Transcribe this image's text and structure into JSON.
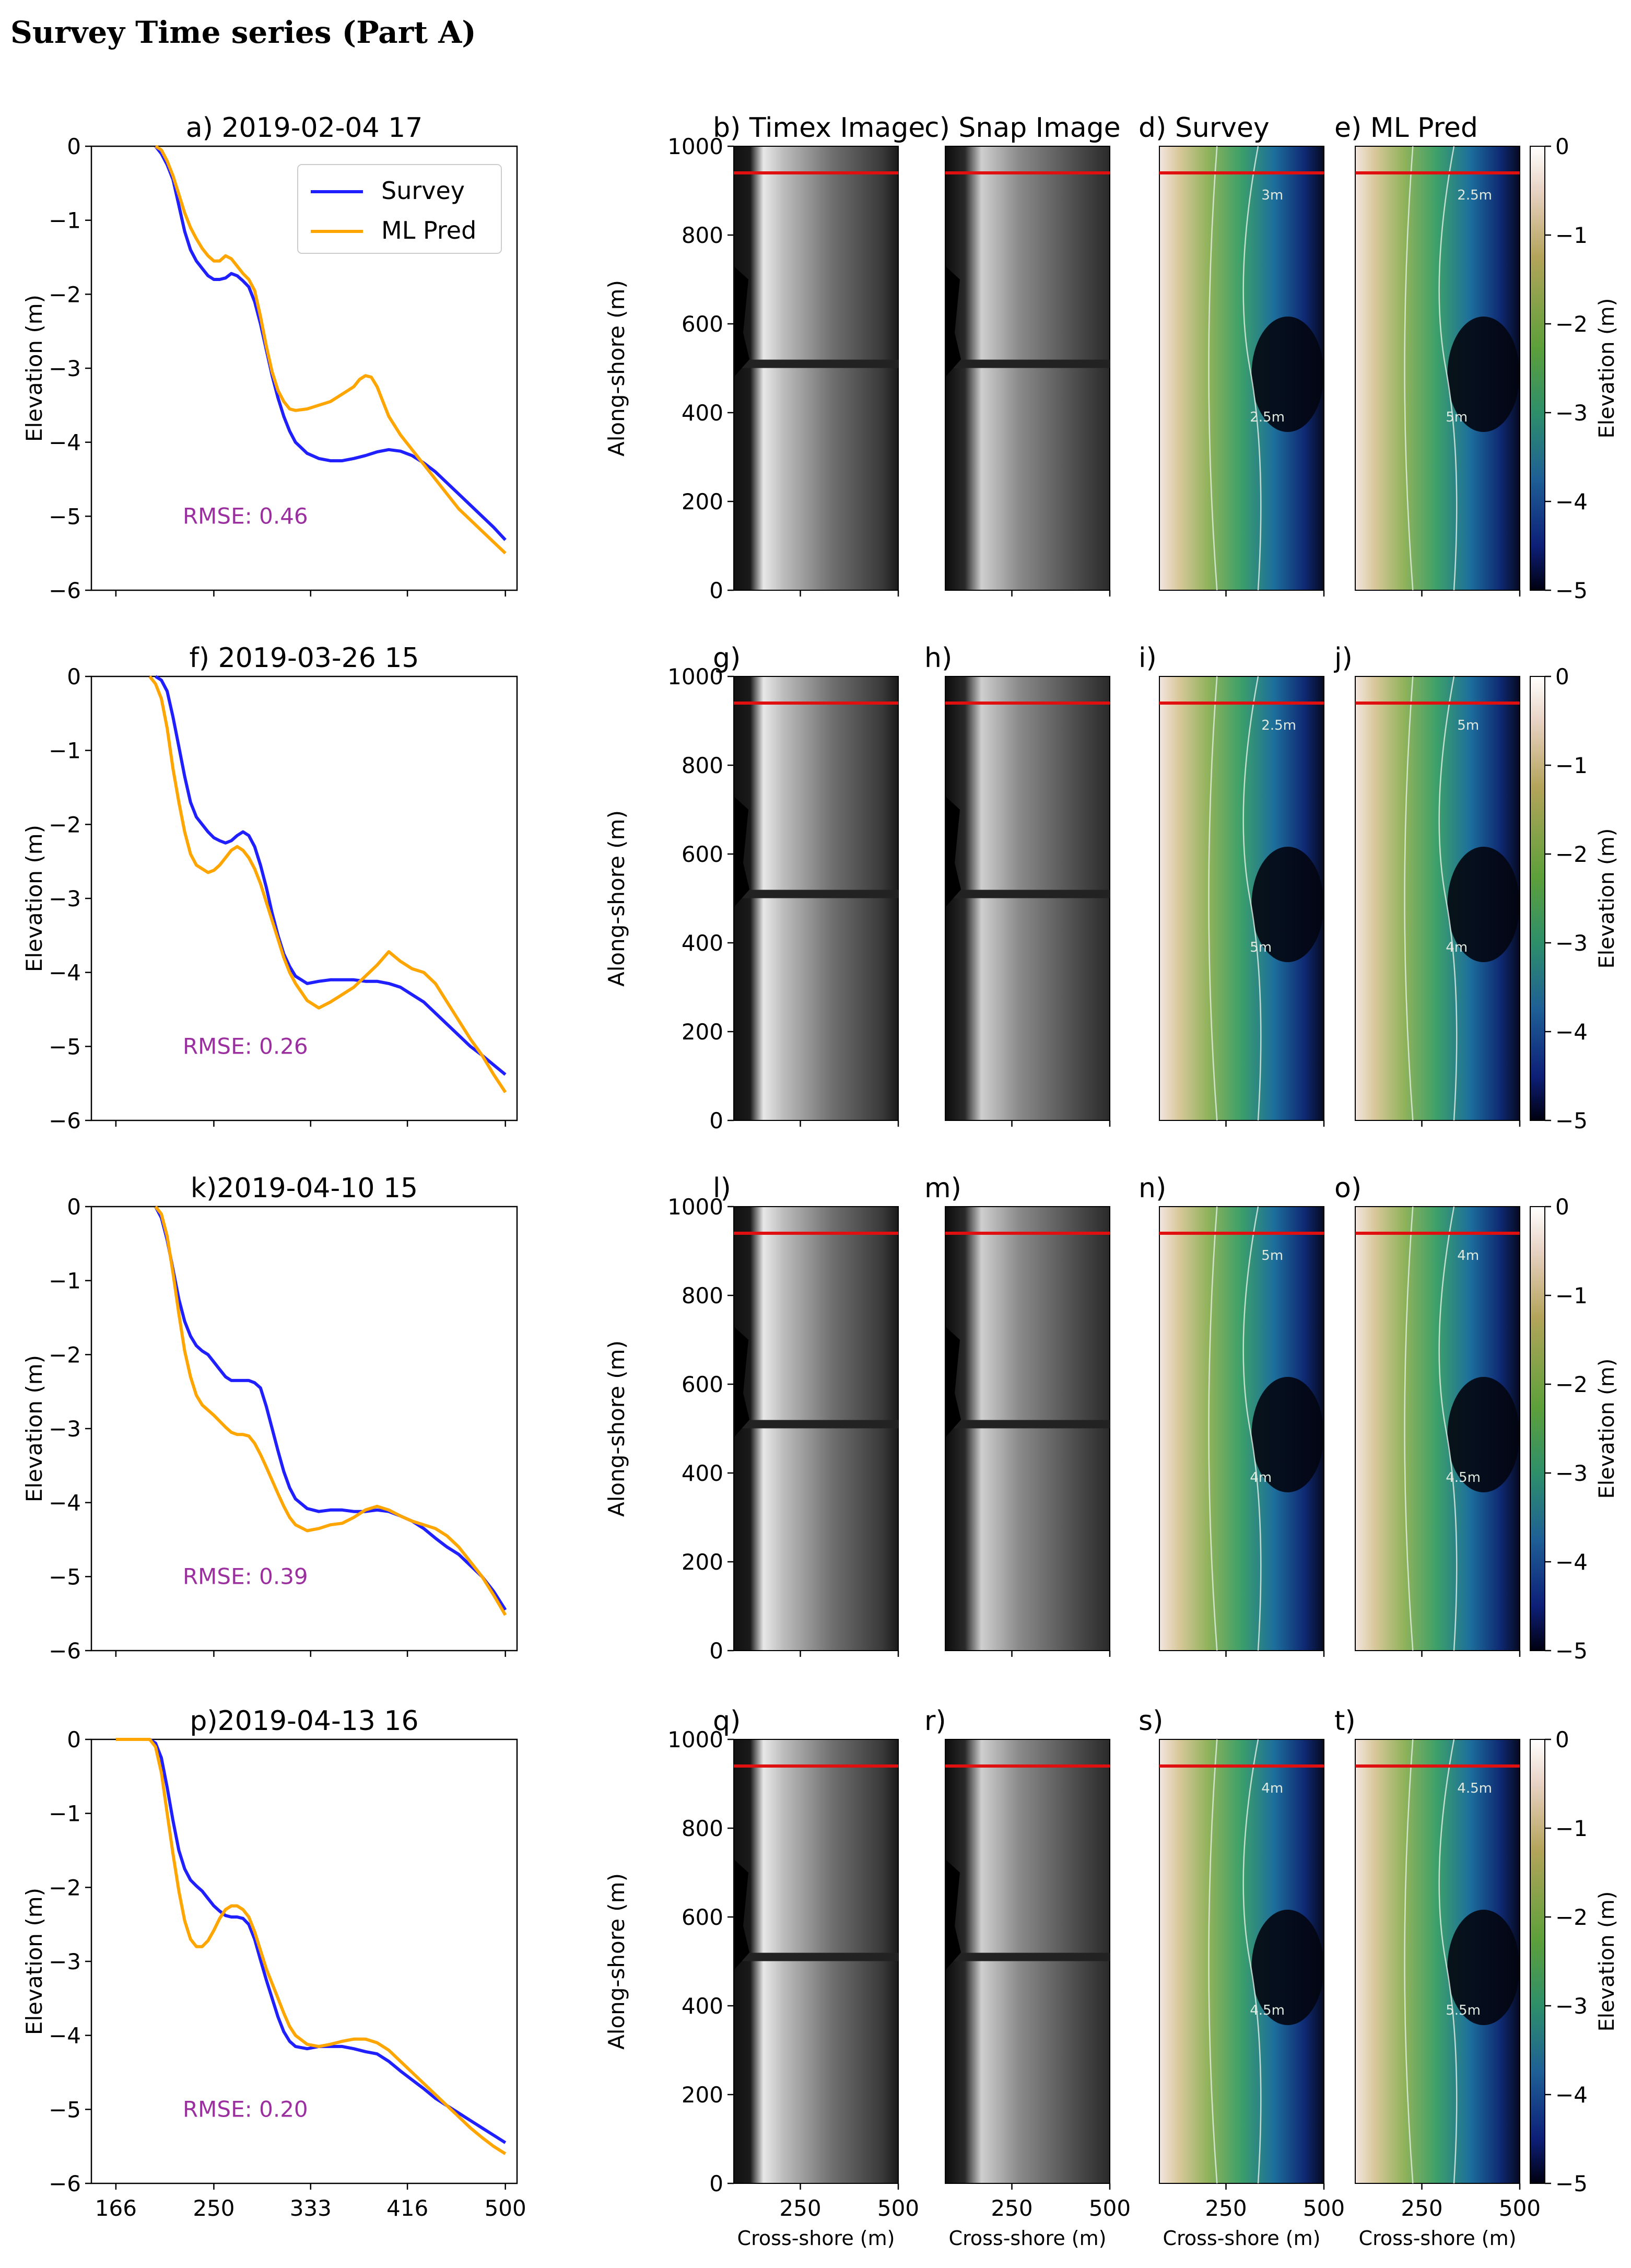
{
  "page_title": "Survey Time series (Part A)",
  "legend": {
    "survey": "Survey",
    "ml_pred": "ML Pred"
  },
  "colors": {
    "survey": "#1f1fff",
    "ml_pred": "#ffa500",
    "rmse": "#9b2fa0",
    "marker_line": "#e01010"
  },
  "panel_headings": {
    "b": "b) Timex Image",
    "c": "c) Snap Image",
    "d": "d) Survey",
    "e": "e) ML Pred"
  },
  "axis_labels": {
    "elevation": "Elevation (m)",
    "along_shore": "Along-shore (m)",
    "cross_shore": "Cross-shore (m)",
    "colorbar": "Elevation (m)"
  },
  "chart_data": [
    {
      "type": "line",
      "row": 0,
      "title": "a) 2019-02-04 17",
      "rmse_label": "RMSE: 0.46",
      "xlim": [
        145,
        510
      ],
      "ylim": [
        -6,
        0
      ],
      "xticks": [
        166,
        250,
        333,
        416,
        500
      ],
      "yticks": [
        0,
        -1,
        -2,
        -3,
        -4,
        -5,
        -6
      ],
      "series": [
        {
          "name": "Survey",
          "x": [
            200,
            205,
            210,
            215,
            220,
            225,
            230,
            235,
            240,
            245,
            250,
            255,
            260,
            265,
            270,
            275,
            280,
            285,
            290,
            295,
            300,
            305,
            310,
            315,
            320,
            330,
            340,
            350,
            360,
            370,
            380,
            390,
            400,
            410,
            420,
            430,
            440,
            450,
            460,
            470,
            480,
            490,
            500
          ],
          "y": [
            0,
            -0.1,
            -0.25,
            -0.45,
            -0.8,
            -1.15,
            -1.4,
            -1.55,
            -1.65,
            -1.75,
            -1.8,
            -1.8,
            -1.78,
            -1.72,
            -1.75,
            -1.82,
            -1.9,
            -2.1,
            -2.4,
            -2.75,
            -3.1,
            -3.4,
            -3.65,
            -3.85,
            -4.0,
            -4.15,
            -4.22,
            -4.25,
            -4.25,
            -4.22,
            -4.18,
            -4.13,
            -4.1,
            -4.12,
            -4.18,
            -4.28,
            -4.4,
            -4.55,
            -4.7,
            -4.85,
            -5.0,
            -5.15,
            -5.32
          ]
        },
        {
          "name": "ML Pred",
          "x": [
            200,
            205,
            210,
            215,
            220,
            225,
            230,
            235,
            240,
            245,
            250,
            255,
            260,
            265,
            270,
            275,
            280,
            285,
            290,
            295,
            300,
            305,
            310,
            315,
            320,
            330,
            340,
            350,
            360,
            370,
            375,
            380,
            385,
            390,
            395,
            400,
            410,
            420,
            430,
            440,
            450,
            460,
            470,
            480,
            490,
            500
          ],
          "y": [
            0,
            -0.05,
            -0.2,
            -0.4,
            -0.65,
            -0.9,
            -1.1,
            -1.25,
            -1.38,
            -1.48,
            -1.55,
            -1.55,
            -1.48,
            -1.52,
            -1.62,
            -1.72,
            -1.8,
            -1.95,
            -2.3,
            -2.7,
            -3.05,
            -3.3,
            -3.45,
            -3.55,
            -3.57,
            -3.55,
            -3.5,
            -3.45,
            -3.35,
            -3.25,
            -3.15,
            -3.1,
            -3.12,
            -3.25,
            -3.45,
            -3.65,
            -3.9,
            -4.1,
            -4.3,
            -4.5,
            -4.7,
            -4.9,
            -5.05,
            -5.2,
            -5.35,
            -5.5
          ]
        }
      ]
    },
    {
      "type": "line",
      "row": 1,
      "title": "f) 2019-03-26 15",
      "rmse_label": "RMSE: 0.26",
      "xlim": [
        145,
        510
      ],
      "ylim": [
        -6,
        0
      ],
      "xticks": [
        166,
        250,
        333,
        416,
        500
      ],
      "yticks": [
        0,
        -1,
        -2,
        -3,
        -4,
        -5,
        -6
      ],
      "series": [
        {
          "name": "Survey",
          "x": [
            200,
            205,
            210,
            215,
            220,
            225,
            230,
            235,
            240,
            245,
            250,
            255,
            260,
            265,
            270,
            275,
            280,
            285,
            290,
            295,
            300,
            305,
            310,
            315,
            320,
            330,
            340,
            350,
            360,
            370,
            380,
            390,
            400,
            410,
            420,
            430,
            440,
            450,
            460,
            470,
            480,
            490,
            500
          ],
          "y": [
            0,
            -0.05,
            -0.2,
            -0.55,
            -0.95,
            -1.35,
            -1.7,
            -1.9,
            -2.0,
            -2.1,
            -2.18,
            -2.22,
            -2.25,
            -2.22,
            -2.15,
            -2.1,
            -2.15,
            -2.3,
            -2.55,
            -2.85,
            -3.2,
            -3.5,
            -3.75,
            -3.92,
            -4.05,
            -4.15,
            -4.12,
            -4.1,
            -4.1,
            -4.1,
            -4.12,
            -4.12,
            -4.15,
            -4.2,
            -4.3,
            -4.4,
            -4.55,
            -4.7,
            -4.85,
            -5.0,
            -5.12,
            -5.25,
            -5.38
          ]
        },
        {
          "name": "ML Pred",
          "x": [
            195,
            200,
            205,
            210,
            215,
            220,
            225,
            230,
            235,
            240,
            245,
            250,
            255,
            260,
            265,
            270,
            275,
            280,
            285,
            290,
            295,
            300,
            305,
            310,
            315,
            320,
            330,
            340,
            350,
            360,
            370,
            380,
            390,
            400,
            410,
            420,
            430,
            440,
            450,
            460,
            470,
            480,
            490,
            500
          ],
          "y": [
            0,
            -0.1,
            -0.3,
            -0.7,
            -1.25,
            -1.7,
            -2.1,
            -2.4,
            -2.55,
            -2.6,
            -2.65,
            -2.62,
            -2.55,
            -2.45,
            -2.35,
            -2.3,
            -2.35,
            -2.45,
            -2.6,
            -2.8,
            -3.05,
            -3.3,
            -3.55,
            -3.8,
            -4.0,
            -4.15,
            -4.38,
            -4.48,
            -4.4,
            -4.3,
            -4.2,
            -4.05,
            -3.9,
            -3.72,
            -3.85,
            -3.95,
            -4.0,
            -4.15,
            -4.4,
            -4.65,
            -4.9,
            -5.12,
            -5.38,
            -5.62
          ]
        }
      ]
    },
    {
      "type": "line",
      "row": 2,
      "title": "k)2019-04-10 15",
      "rmse_label": "RMSE: 0.39",
      "xlim": [
        145,
        510
      ],
      "ylim": [
        -6,
        0
      ],
      "xticks": [
        166,
        250,
        333,
        416,
        500
      ],
      "yticks": [
        0,
        -1,
        -2,
        -3,
        -4,
        -5,
        -6
      ],
      "series": [
        {
          "name": "Survey",
          "x": [
            200,
            205,
            210,
            215,
            220,
            225,
            230,
            235,
            240,
            245,
            250,
            255,
            260,
            265,
            270,
            275,
            280,
            285,
            290,
            295,
            300,
            305,
            310,
            315,
            320,
            330,
            340,
            350,
            360,
            370,
            380,
            390,
            400,
            410,
            420,
            430,
            440,
            450,
            460,
            470,
            480,
            490,
            500
          ],
          "y": [
            0,
            -0.15,
            -0.45,
            -0.85,
            -1.25,
            -1.55,
            -1.75,
            -1.88,
            -1.95,
            -2.0,
            -2.1,
            -2.2,
            -2.3,
            -2.35,
            -2.35,
            -2.35,
            -2.35,
            -2.38,
            -2.45,
            -2.7,
            -3.0,
            -3.3,
            -3.58,
            -3.8,
            -3.95,
            -4.08,
            -4.12,
            -4.1,
            -4.1,
            -4.12,
            -4.12,
            -4.1,
            -4.12,
            -4.18,
            -4.25,
            -4.35,
            -4.48,
            -4.6,
            -4.7,
            -4.85,
            -5.0,
            -5.2,
            -5.45
          ]
        },
        {
          "name": "ML Pred",
          "x": [
            200,
            205,
            210,
            215,
            220,
            225,
            230,
            235,
            240,
            245,
            250,
            255,
            260,
            265,
            270,
            275,
            280,
            285,
            290,
            295,
            300,
            305,
            310,
            315,
            320,
            330,
            340,
            350,
            360,
            370,
            380,
            390,
            400,
            410,
            420,
            430,
            440,
            450,
            460,
            470,
            480,
            490,
            500
          ],
          "y": [
            0,
            -0.1,
            -0.4,
            -0.9,
            -1.45,
            -1.95,
            -2.3,
            -2.55,
            -2.68,
            -2.75,
            -2.82,
            -2.9,
            -2.98,
            -3.05,
            -3.08,
            -3.08,
            -3.1,
            -3.2,
            -3.35,
            -3.52,
            -3.7,
            -3.88,
            -4.05,
            -4.2,
            -4.3,
            -4.38,
            -4.35,
            -4.3,
            -4.28,
            -4.2,
            -4.1,
            -4.05,
            -4.1,
            -4.18,
            -4.25,
            -4.3,
            -4.35,
            -4.45,
            -4.6,
            -4.8,
            -5.0,
            -5.25,
            -5.52
          ]
        }
      ]
    },
    {
      "type": "line",
      "row": 3,
      "title": "p)2019-04-13 16",
      "rmse_label": "RMSE: 0.20",
      "xlim": [
        145,
        510
      ],
      "ylim": [
        -6,
        0
      ],
      "xticks": [
        166,
        250,
        333,
        416,
        500
      ],
      "yticks": [
        0,
        -1,
        -2,
        -3,
        -4,
        -5,
        -6
      ],
      "series": [
        {
          "name": "Survey",
          "x": [
            166,
            180,
            195,
            200,
            205,
            210,
            215,
            220,
            225,
            230,
            235,
            240,
            245,
            250,
            255,
            260,
            265,
            270,
            275,
            280,
            285,
            290,
            295,
            300,
            305,
            310,
            315,
            320,
            330,
            340,
            350,
            360,
            370,
            380,
            390,
            400,
            410,
            420,
            430,
            440,
            450,
            460,
            470,
            480,
            490,
            500
          ],
          "y": [
            0,
            0,
            0,
            -0.05,
            -0.25,
            -0.65,
            -1.1,
            -1.5,
            -1.75,
            -1.9,
            -1.98,
            -2.05,
            -2.15,
            -2.25,
            -2.32,
            -2.38,
            -2.4,
            -2.4,
            -2.42,
            -2.5,
            -2.7,
            -2.98,
            -3.25,
            -3.5,
            -3.75,
            -3.95,
            -4.08,
            -4.15,
            -4.18,
            -4.15,
            -4.15,
            -4.15,
            -4.18,
            -4.22,
            -4.25,
            -4.35,
            -4.48,
            -4.6,
            -4.72,
            -4.85,
            -4.95,
            -5.05,
            -5.15,
            -5.25,
            -5.35,
            -5.45
          ]
        },
        {
          "name": "ML Pred",
          "x": [
            166,
            180,
            195,
            200,
            205,
            210,
            215,
            220,
            225,
            230,
            235,
            240,
            245,
            250,
            255,
            260,
            265,
            270,
            275,
            280,
            285,
            290,
            295,
            300,
            305,
            310,
            315,
            320,
            330,
            340,
            350,
            360,
            370,
            380,
            390,
            400,
            410,
            420,
            430,
            440,
            450,
            460,
            470,
            480,
            490,
            500
          ],
          "y": [
            0,
            0,
            0,
            -0.1,
            -0.45,
            -1.0,
            -1.55,
            -2.05,
            -2.45,
            -2.7,
            -2.8,
            -2.8,
            -2.72,
            -2.58,
            -2.42,
            -2.3,
            -2.25,
            -2.25,
            -2.3,
            -2.4,
            -2.6,
            -2.85,
            -3.1,
            -3.3,
            -3.5,
            -3.7,
            -3.88,
            -4.0,
            -4.12,
            -4.15,
            -4.12,
            -4.08,
            -4.05,
            -4.05,
            -4.1,
            -4.2,
            -4.35,
            -4.5,
            -4.65,
            -4.8,
            -4.95,
            -5.1,
            -5.25,
            -5.38,
            -5.5,
            -5.6
          ]
        }
      ]
    }
  ],
  "image_rows": [
    {
      "labels": [
        "b) Timex Image",
        "c) Snap Image",
        "d) Survey",
        "e) ML Pred"
      ]
    },
    {
      "labels": [
        "g)",
        "h)",
        "i)",
        "j)"
      ]
    },
    {
      "labels": [
        "l)",
        "m)",
        "n)",
        "o)"
      ]
    },
    {
      "labels": [
        "q)",
        "r)",
        "s)",
        "t)"
      ]
    }
  ],
  "image_axes": {
    "yticks": [
      "1000",
      "800",
      "600",
      "400",
      "200",
      "0"
    ],
    "xticks": [
      "250",
      "500"
    ],
    "marker_y": 940
  },
  "colorbar": {
    "ticks": [
      "0",
      "−1",
      "−2",
      "−3",
      "−4",
      "−5"
    ]
  },
  "contour_labels": [
    "4.5m",
    "5.5m",
    "3m",
    "2.5m",
    "5m",
    "4m"
  ]
}
